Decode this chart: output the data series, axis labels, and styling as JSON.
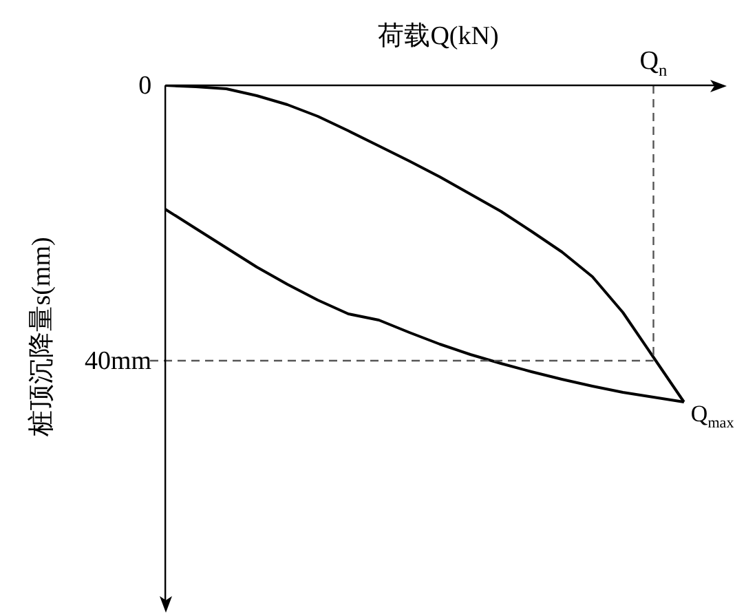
{
  "chart_data": {
    "type": "line",
    "xlabel": "荷载Q(kN)",
    "ylabel": "桩顶沉降量s(mm)",
    "categories": [
      null,
      null,
      null,
      null,
      null,
      null,
      null,
      null,
      null,
      null,
      null,
      null,
      null,
      null,
      null,
      null,
      "Q$_{n}$",
      null
    ],
    "ylim": [
      75,
      0
    ],
    "yticks": [
      {
        "value": 0,
        "label": "0"
      },
      {
        "value": 40,
        "label": "40mm"
      }
    ],
    "series": [
      {
        "color": "#000000",
        "values": [
          0,
          0.2,
          0.5,
          1.5,
          2.8,
          4.5,
          6.6,
          8.8,
          11,
          13.3,
          15.8,
          18.3,
          21.2,
          24.2,
          27.8,
          33,
          39.5,
          46
        ]
      },
      {
        "color": "#000000",
        "values": [
          18,
          20.8,
          23.6,
          26.4,
          28.9,
          31.2,
          33.2,
          34.1,
          35.9,
          37.6,
          39.1,
          40.4,
          41.6,
          42.7,
          43.7,
          44.6,
          45.3,
          46
        ]
      }
    ],
    "ref_lines": [
      {
        "axis": "y",
        "value": 40,
        "color": "#555555",
        "line_style": "dashed"
      },
      {
        "axis": "x",
        "value": "Q$_{n}$",
        "color": "#555555",
        "line_style": "dashed"
      }
    ],
    "annotations": [
      "Q$_{max}$"
    ],
    "grid": false,
    "legend": false,
    "marker": "none",
    "line_style": "solid"
  }
}
